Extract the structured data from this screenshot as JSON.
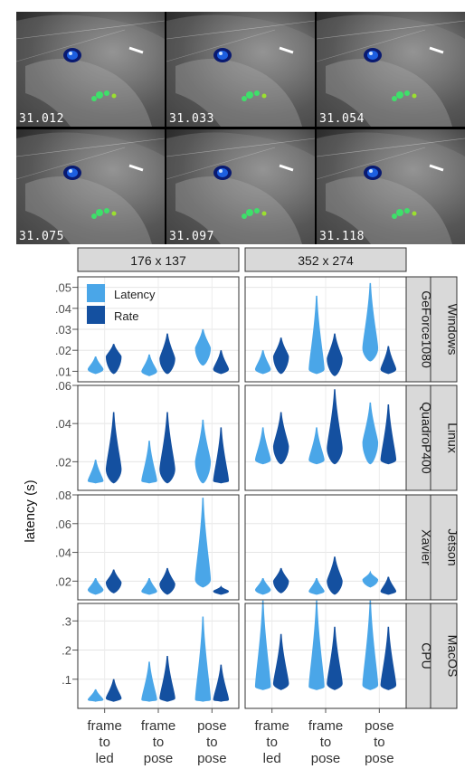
{
  "frames": {
    "timestamps": [
      "31.012",
      "31.033",
      "31.054",
      "31.075",
      "31.097",
      "31.118"
    ]
  },
  "chart_data": {
    "type": "violin",
    "ylabel": "latency (s)",
    "columns": [
      "176 x 137",
      "352 x 274"
    ],
    "rows": [
      {
        "platform": "Windows",
        "gpu": "GeForce1080",
        "ylim": [
          0.005,
          0.055
        ],
        "yticks": [
          0.01,
          0.02,
          0.03,
          0.04,
          0.05
        ],
        "yticklabels": [
          ".01",
          ".02",
          ".03",
          ".04",
          ".05"
        ]
      },
      {
        "platform": "Linux",
        "gpu": "QuadroP400",
        "ylim": [
          0.005,
          0.06
        ],
        "yticks": [
          0.02,
          0.04,
          0.06
        ],
        "yticklabels": [
          ".02",
          ".04",
          ".06"
        ]
      },
      {
        "platform": "Jetson",
        "gpu": "Xavier",
        "ylim": [
          0.007,
          0.08
        ],
        "yticks": [
          0.02,
          0.04,
          0.06,
          0.08
        ],
        "yticklabels": [
          ".02",
          ".04",
          ".06",
          ".08"
        ]
      },
      {
        "platform": "MacOS",
        "gpu": "CPU",
        "ylim": [
          0,
          0.36
        ],
        "yticks": [
          0.1,
          0.2,
          0.3
        ],
        "yticklabels": [
          ".1",
          ".2",
          ".3"
        ]
      }
    ],
    "categories": [
      "frame to led",
      "frame to pose",
      "pose to pose"
    ],
    "category_label_lines": [
      [
        "frame",
        "to",
        "led"
      ],
      [
        "frame",
        "to",
        "pose"
      ],
      [
        "pose",
        "to",
        "pose"
      ]
    ],
    "legend": [
      "Latency",
      "Rate"
    ],
    "colors": {
      "Latency": "#4aa6e8",
      "Rate": "#1450a0"
    },
    "series": [
      {
        "name": "Latency",
        "panels": [
          [
            [
              {
                "min": 0.009,
                "max": 0.017,
                "median": 0.011
              },
              {
                "min": 0.008,
                "max": 0.018,
                "median": 0.01
              },
              {
                "min": 0.013,
                "max": 0.03,
                "median": 0.021
              }
            ],
            [
              {
                "min": 0.009,
                "max": 0.02,
                "median": 0.011
              },
              {
                "min": 0.009,
                "max": 0.046,
                "median": 0.011
              },
              {
                "min": 0.015,
                "max": 0.052,
                "median": 0.021
              }
            ]
          ],
          [
            [
              {
                "min": 0.009,
                "max": 0.021,
                "median": 0.01
              },
              {
                "min": 0.009,
                "max": 0.031,
                "median": 0.01
              },
              {
                "min": 0.009,
                "max": 0.042,
                "median": 0.02
              }
            ],
            [
              {
                "min": 0.019,
                "max": 0.038,
                "median": 0.021
              },
              {
                "min": 0.019,
                "max": 0.038,
                "median": 0.021
              },
              {
                "min": 0.019,
                "max": 0.051,
                "median": 0.03
              }
            ]
          ],
          [
            [
              {
                "min": 0.011,
                "max": 0.022,
                "median": 0.014
              },
              {
                "min": 0.011,
                "max": 0.022,
                "median": 0.013
              },
              {
                "min": 0.016,
                "max": 0.078,
                "median": 0.021
              }
            ],
            [
              {
                "min": 0.011,
                "max": 0.022,
                "median": 0.014
              },
              {
                "min": 0.011,
                "max": 0.022,
                "median": 0.013
              },
              {
                "min": 0.016,
                "max": 0.026,
                "median": 0.021
              }
            ]
          ],
          [
            [
              {
                "min": 0.025,
                "max": 0.065,
                "median": 0.03
              },
              {
                "min": 0.025,
                "max": 0.16,
                "median": 0.03
              },
              {
                "min": 0.025,
                "max": 0.315,
                "median": 0.03
              }
            ],
            [
              {
                "min": 0.065,
                "max": 0.37,
                "median": 0.075
              },
              {
                "min": 0.065,
                "max": 0.37,
                "median": 0.075
              },
              {
                "min": 0.065,
                "max": 0.37,
                "median": 0.08
              }
            ]
          ]
        ]
      },
      {
        "name": "Rate",
        "panels": [
          [
            [
              {
                "min": 0.009,
                "max": 0.023,
                "median": 0.017
              },
              {
                "min": 0.009,
                "max": 0.028,
                "median": 0.016
              },
              {
                "min": 0.009,
                "max": 0.02,
                "median": 0.011
              }
            ],
            [
              {
                "min": 0.009,
                "max": 0.026,
                "median": 0.017
              },
              {
                "min": 0.008,
                "max": 0.028,
                "median": 0.016
              },
              {
                "min": 0.009,
                "max": 0.022,
                "median": 0.011
              }
            ]
          ],
          [
            [
              {
                "min": 0.009,
                "max": 0.046,
                "median": 0.016
              },
              {
                "min": 0.009,
                "max": 0.046,
                "median": 0.016
              },
              {
                "min": 0.009,
                "max": 0.038,
                "median": 0.01
              }
            ],
            [
              {
                "min": 0.019,
                "max": 0.046,
                "median": 0.028
              },
              {
                "min": 0.019,
                "max": 0.058,
                "median": 0.027
              },
              {
                "min": 0.019,
                "max": 0.05,
                "median": 0.021
              }
            ]
          ],
          [
            [
              {
                "min": 0.012,
                "max": 0.028,
                "median": 0.019
              },
              {
                "min": 0.011,
                "max": 0.029,
                "median": 0.018
              },
              {
                "min": 0.011,
                "max": 0.016,
                "median": 0.013
              }
            ],
            [
              {
                "min": 0.012,
                "max": 0.029,
                "median": 0.02
              },
              {
                "min": 0.011,
                "max": 0.037,
                "median": 0.02
              },
              {
                "min": 0.011,
                "max": 0.023,
                "median": 0.013
              }
            ]
          ],
          [
            [
              {
                "min": 0.025,
                "max": 0.1,
                "median": 0.035
              },
              {
                "min": 0.025,
                "max": 0.18,
                "median": 0.035
              },
              {
                "min": 0.025,
                "max": 0.15,
                "median": 0.03
              }
            ],
            [
              {
                "min": 0.065,
                "max": 0.255,
                "median": 0.085
              },
              {
                "min": 0.065,
                "max": 0.28,
                "median": 0.085
              },
              {
                "min": 0.065,
                "max": 0.28,
                "median": 0.08
              }
            ]
          ]
        ]
      }
    ]
  }
}
